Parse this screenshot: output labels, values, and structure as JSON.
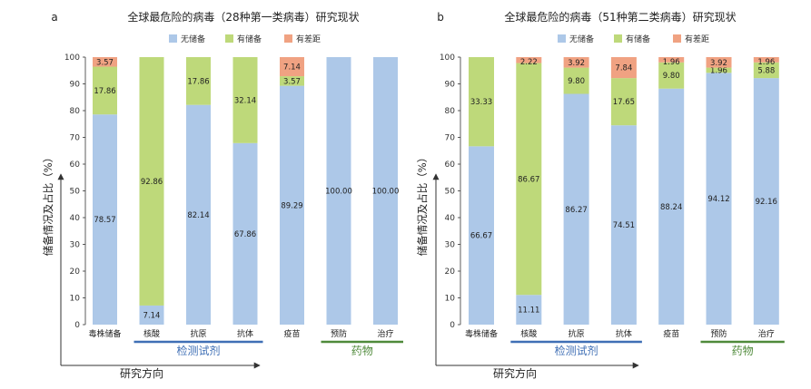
{
  "colors": {
    "none": "#adc8e8",
    "has": "#bed97a",
    "diff": "#f0a282",
    "detect_group": "#3f6fb5",
    "drug_group": "#4f8a3a",
    "axis": "#333333"
  },
  "chart_data": [
    {
      "type": "bar",
      "stacked": true,
      "panel": "a",
      "title": "全球最危险的病毒（28种第一类病毒）研究现状",
      "ylabel": "储备情况及占比（%）",
      "xlabel": "研究方向",
      "ylim": [
        0,
        100
      ],
      "yticks": [
        0,
        10,
        20,
        30,
        40,
        50,
        60,
        70,
        80,
        90,
        100
      ],
      "legend": [
        "无储备",
        "有储备",
        "有差距"
      ],
      "legend_position": "top",
      "categories": [
        "毒株储备",
        "核酸",
        "抗原",
        "抗体",
        "疫苗",
        "预防",
        "治疗"
      ],
      "series": [
        {
          "name": "无储备",
          "color_key": "none",
          "values": [
            78.57,
            7.14,
            82.14,
            67.86,
            89.29,
            100.0,
            100.0
          ],
          "labels": [
            "78.57",
            "7.14",
            "82.14",
            "67.86",
            "89.29",
            "100.00",
            "100.00"
          ]
        },
        {
          "name": "有储备",
          "color_key": "has",
          "values": [
            17.86,
            92.86,
            17.86,
            32.14,
            3.57,
            0,
            0
          ],
          "labels": [
            "17.86",
            "92.86",
            "17.86",
            "32.14",
            "3.57",
            "",
            ""
          ]
        },
        {
          "name": "有差距",
          "color_key": "diff",
          "values": [
            3.57,
            0,
            0,
            0,
            7.14,
            0,
            0
          ],
          "labels": [
            "3.57",
            "",
            "",
            "",
            "7.14",
            "",
            ""
          ]
        }
      ],
      "groups": [
        {
          "label": "检测试剂",
          "from": 1,
          "to": 3,
          "color_key": "detect_group"
        },
        {
          "label": "药物",
          "from": 5,
          "to": 6,
          "color_key": "drug_group"
        }
      ]
    },
    {
      "type": "bar",
      "stacked": true,
      "panel": "b",
      "title": "全球最危险的病毒（51种第二类病毒）研究现状",
      "ylabel": "储备情况及占比（%）",
      "xlabel": "研究方向",
      "ylim": [
        0,
        100
      ],
      "yticks": [
        0,
        10,
        20,
        30,
        40,
        50,
        60,
        70,
        80,
        90,
        100
      ],
      "legend": [
        "无储备",
        "有储备",
        "有差距"
      ],
      "legend_position": "top",
      "categories": [
        "毒株储备",
        "核酸",
        "抗原",
        "抗体",
        "疫苗",
        "预防",
        "治疗"
      ],
      "series": [
        {
          "name": "无储备",
          "color_key": "none",
          "values": [
            66.67,
            11.11,
            86.27,
            74.51,
            88.24,
            94.12,
            92.16
          ],
          "labels": [
            "66.67",
            "11.11",
            "86.27",
            "74.51",
            "88.24",
            "94.12",
            "92.16"
          ]
        },
        {
          "name": "有储备",
          "color_key": "has",
          "values": [
            33.33,
            86.67,
            9.8,
            17.65,
            9.8,
            1.96,
            5.88
          ],
          "labels": [
            "33.33",
            "86.67",
            "9.80",
            "17.65",
            "9.80",
            "1.96",
            "5.88"
          ]
        },
        {
          "name": "有差距",
          "color_key": "diff",
          "values": [
            0,
            2.22,
            3.92,
            7.84,
            1.96,
            3.92,
            1.96
          ],
          "labels": [
            "",
            "2.22",
            "3.92",
            "7.84",
            "1.96",
            "3.92",
            "1.96"
          ]
        }
      ],
      "groups": [
        {
          "label": "检测试剂",
          "from": 1,
          "to": 3,
          "color_key": "detect_group"
        },
        {
          "label": "药物",
          "from": 5,
          "to": 6,
          "color_key": "drug_group"
        }
      ]
    }
  ]
}
